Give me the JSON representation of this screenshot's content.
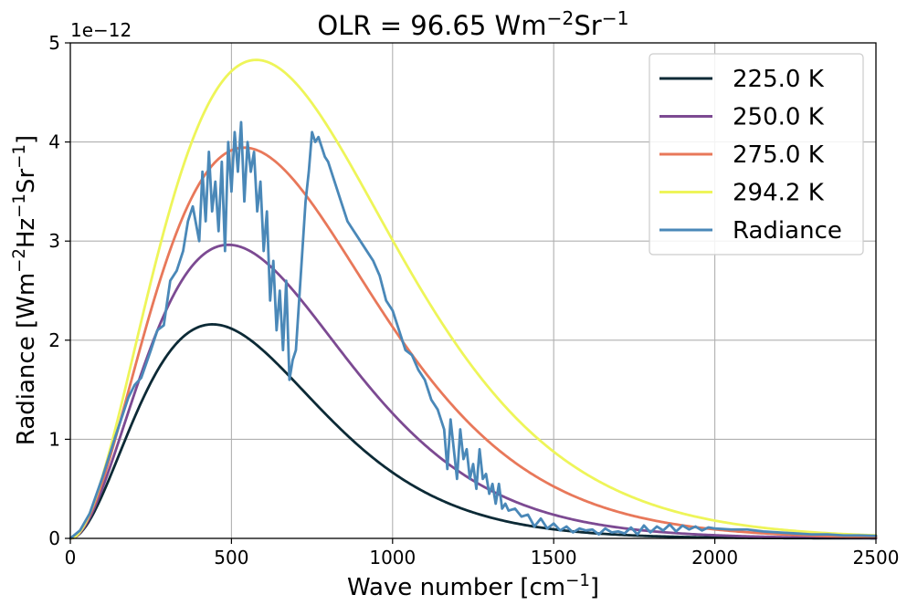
{
  "chart_data": {
    "type": "line",
    "title": "OLR = 96.65 Wm",
    "title_sup1": "−2",
    "title_mid": "Sr",
    "title_sup2": "−1",
    "xlabel_main": "Wave number [cm",
    "xlabel_sup": "−1",
    "xlabel_end": "]",
    "ylabel_p1": "Radiance [Wm",
    "ylabel_s1": "−2",
    "ylabel_p2": "Hz",
    "ylabel_s2": "−1",
    "ylabel_p3": "Sr",
    "ylabel_s3": "−1",
    "ylabel_p4": "]",
    "y_offset_label": "1e−12",
    "xlim": [
      0,
      2500
    ],
    "ylim": [
      0,
      5
    ],
    "y_scale": 1e-12,
    "x_ticks": [
      0,
      500,
      1000,
      1500,
      2000,
      2500
    ],
    "x_tick_labels": [
      "0",
      "500",
      "1000",
      "1500",
      "2000",
      "2500"
    ],
    "y_ticks": [
      0,
      1,
      2,
      3,
      4,
      5
    ],
    "y_tick_labels": [
      "0",
      "1",
      "2",
      "3",
      "4",
      "5"
    ],
    "grid": true,
    "legend_position": "top-right",
    "series": [
      {
        "name": "225.0 K",
        "color": "#0c2a36",
        "temperature_K": 225.0,
        "kind": "planck"
      },
      {
        "name": "250.0 K",
        "color": "#7c4a92",
        "temperature_K": 250.0,
        "kind": "planck"
      },
      {
        "name": "275.0 K",
        "color": "#e8785a",
        "temperature_K": 275.0,
        "kind": "planck"
      },
      {
        "name": "294.2 K",
        "color": "#eef559",
        "temperature_K": 294.2,
        "kind": "planck"
      },
      {
        "name": "Radiance",
        "color": "#4a88b8",
        "kind": "sampled",
        "x": [
          0,
          30,
          60,
          100,
          140,
          180,
          200,
          220,
          250,
          270,
          290,
          310,
          330,
          350,
          365,
          380,
          400,
          410,
          420,
          430,
          440,
          450,
          460,
          470,
          480,
          490,
          500,
          510,
          520,
          530,
          540,
          550,
          560,
          570,
          580,
          590,
          600,
          610,
          620,
          630,
          640,
          650,
          660,
          670,
          680,
          690,
          700,
          710,
          720,
          730,
          740,
          750,
          760,
          770,
          780,
          790,
          800,
          820,
          840,
          860,
          880,
          900,
          920,
          940,
          960,
          980,
          1000,
          1020,
          1040,
          1060,
          1080,
          1100,
          1120,
          1140,
          1160,
          1170,
          1180,
          1190,
          1200,
          1210,
          1220,
          1230,
          1240,
          1250,
          1260,
          1270,
          1280,
          1290,
          1300,
          1310,
          1320,
          1330,
          1340,
          1350,
          1360,
          1380,
          1400,
          1420,
          1440,
          1460,
          1480,
          1500,
          1520,
          1540,
          1560,
          1580,
          1600,
          1620,
          1640,
          1660,
          1680,
          1700,
          1720,
          1740,
          1760,
          1780,
          1800,
          1820,
          1840,
          1860,
          1880,
          1900,
          1920,
          1940,
          1960,
          1980,
          2000,
          2050,
          2100,
          2150,
          2200,
          2250,
          2300,
          2350,
          2400,
          2450,
          2500
        ],
        "y": [
          0,
          0.08,
          0.25,
          0.62,
          1.03,
          1.42,
          1.55,
          1.62,
          1.9,
          2.1,
          2.15,
          2.6,
          2.7,
          2.9,
          3.2,
          3.35,
          3.0,
          3.7,
          3.2,
          3.9,
          3.3,
          3.6,
          3.1,
          3.8,
          2.9,
          4.0,
          3.5,
          4.1,
          3.7,
          4.2,
          3.4,
          4.0,
          3.7,
          3.9,
          3.3,
          3.6,
          2.9,
          3.3,
          2.4,
          2.8,
          2.1,
          2.5,
          1.9,
          2.6,
          1.6,
          1.8,
          1.9,
          2.4,
          2.9,
          3.4,
          3.7,
          4.1,
          4.0,
          4.05,
          3.95,
          3.85,
          3.8,
          3.6,
          3.4,
          3.2,
          3.1,
          3.0,
          2.9,
          2.8,
          2.65,
          2.4,
          2.3,
          2.1,
          1.9,
          1.85,
          1.7,
          1.6,
          1.4,
          1.3,
          1.1,
          0.7,
          1.2,
          0.9,
          0.6,
          1.1,
          0.8,
          0.9,
          0.6,
          0.75,
          0.5,
          0.9,
          0.6,
          0.65,
          0.45,
          0.55,
          0.35,
          0.55,
          0.3,
          0.35,
          0.28,
          0.3,
          0.22,
          0.24,
          0.12,
          0.2,
          0.1,
          0.15,
          0.08,
          0.12,
          0.06,
          0.1,
          0.08,
          0.09,
          0.04,
          0.1,
          0.06,
          0.07,
          0.05,
          0.11,
          0.04,
          0.13,
          0.06,
          0.12,
          0.08,
          0.14,
          0.07,
          0.13,
          0.09,
          0.12,
          0.08,
          0.11,
          0.1,
          0.09,
          0.09,
          0.07,
          0.06,
          0.05,
          0.04,
          0.04,
          0.03,
          0.03,
          0.025
        ]
      }
    ]
  }
}
